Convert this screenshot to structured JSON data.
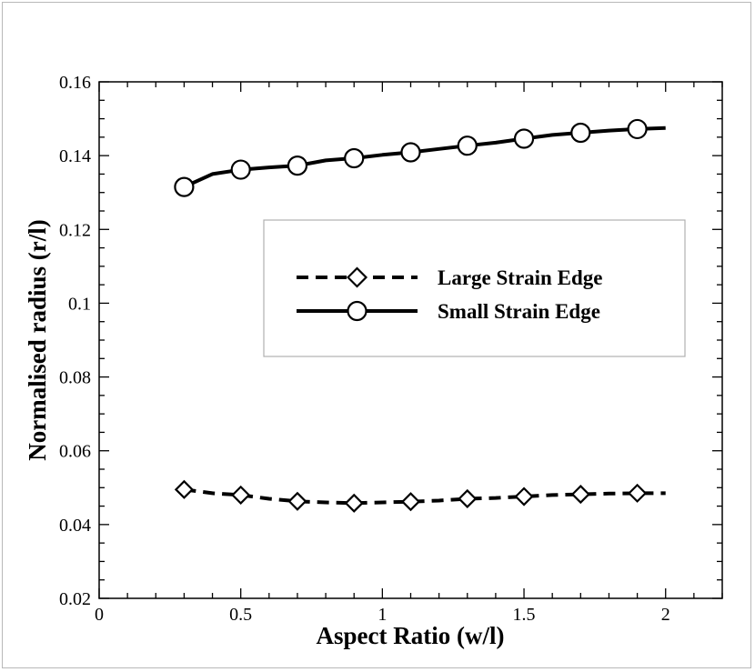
{
  "chart_data": {
    "type": "line",
    "title": "",
    "xlabel": "Aspect Ratio (w/l)",
    "ylabel": "Normalised radius (r/l)",
    "xlim": [
      0,
      2.2
    ],
    "ylim": [
      0.02,
      0.16
    ],
    "x_ticks": [
      0,
      0.5,
      1,
      1.5,
      2
    ],
    "x_tick_labels": [
      "0",
      "0.5",
      "1",
      "1.5",
      "2"
    ],
    "y_ticks": [
      0.02,
      0.04,
      0.06,
      0.08,
      0.1,
      0.12,
      0.14,
      0.16
    ],
    "y_tick_labels": [
      "0.02",
      "0.04",
      "0.06",
      "0.08",
      "0.1",
      "0.12",
      "0.14",
      "0.16"
    ],
    "grid": false,
    "legend_position": "center-right",
    "series": [
      {
        "name": "Large Strain Edge",
        "style": "dashed",
        "marker": "diamond",
        "color": "#000000",
        "x": [
          0.3,
          0.4,
          0.5,
          0.6,
          0.7,
          0.8,
          0.9,
          1.0,
          1.1,
          1.2,
          1.3,
          1.4,
          1.5,
          1.6,
          1.7,
          1.8,
          1.9,
          2.0
        ],
        "y": [
          0.0495,
          0.0485,
          0.048,
          0.047,
          0.0463,
          0.046,
          0.0458,
          0.046,
          0.0462,
          0.0465,
          0.047,
          0.0472,
          0.0476,
          0.048,
          0.0482,
          0.0484,
          0.0485,
          0.0485
        ],
        "marker_x": [
          0.3,
          0.5,
          0.7,
          0.9,
          1.1,
          1.3,
          1.5,
          1.7,
          1.9
        ],
        "marker_y": [
          0.0495,
          0.048,
          0.0463,
          0.0458,
          0.0462,
          0.047,
          0.0476,
          0.0482,
          0.0485
        ]
      },
      {
        "name": "Small Strain Edge",
        "style": "solid",
        "marker": "circle",
        "color": "#000000",
        "x": [
          0.3,
          0.4,
          0.5,
          0.6,
          0.7,
          0.8,
          0.9,
          1.0,
          1.1,
          1.2,
          1.3,
          1.4,
          1.5,
          1.6,
          1.7,
          1.8,
          1.9,
          2.0
        ],
        "y": [
          0.1315,
          0.135,
          0.1362,
          0.1368,
          0.1373,
          0.1387,
          0.1393,
          0.1402,
          0.1409,
          0.1418,
          0.1427,
          0.1435,
          0.1446,
          0.1456,
          0.1462,
          0.1468,
          0.1472,
          0.1475
        ],
        "marker_x": [
          0.3,
          0.5,
          0.7,
          0.9,
          1.1,
          1.3,
          1.5,
          1.7,
          1.9
        ],
        "marker_y": [
          0.1315,
          0.1362,
          0.1373,
          0.1393,
          0.1409,
          0.1427,
          0.1446,
          0.1462,
          0.1472
        ]
      }
    ]
  }
}
